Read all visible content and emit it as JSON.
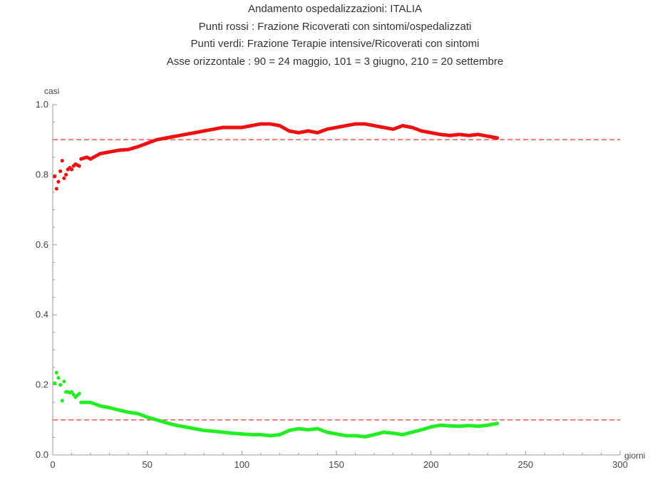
{
  "chart_data": {
    "type": "scatter",
    "title_lines": [
      "Andamento ospedalizzazioni: ITALIA",
      "Punti rossi : Frazione Ricoverati con sintomi/ospedalizzati",
      "Punti verdi: Frazione Terapie intensive/Ricoverati con sintomi",
      "Asse orizzontale : 90 = 24 maggio, 101 = 3 giugno, 210 = 20 settembre"
    ],
    "xlabel": "giorni",
    "ylabel": "casi",
    "xlim": [
      0,
      300
    ],
    "ylim": [
      0.0,
      1.0
    ],
    "x_ticks": [
      0,
      50,
      100,
      150,
      200,
      250,
      300
    ],
    "x_tick_labels": [
      "0",
      "50",
      "100",
      "150",
      "200",
      "250",
      "300"
    ],
    "y_ticks": [
      0.0,
      0.2,
      0.4,
      0.6,
      0.8,
      1.0
    ],
    "y_tick_labels": [
      "0.0",
      "0.2",
      "0.4",
      "0.6",
      "0.8",
      "1.0"
    ],
    "reference_lines": [
      {
        "y": 0.9,
        "color": "#ff4444",
        "style": "dashed"
      },
      {
        "y": 0.1,
        "color": "#ff4444",
        "style": "dashed"
      }
    ],
    "series": [
      {
        "color": "#ee1111",
        "x_start": 1,
        "x_end": 235,
        "control_points": [
          [
            1,
            0.795
          ],
          [
            2,
            0.76
          ],
          [
            3,
            0.78
          ],
          [
            4,
            0.81
          ],
          [
            5,
            0.84
          ],
          [
            6,
            0.79
          ],
          [
            7,
            0.8
          ],
          [
            8,
            0.815
          ],
          [
            9,
            0.82
          ],
          [
            10,
            0.815
          ],
          [
            11,
            0.825
          ],
          [
            12,
            0.83
          ],
          [
            14,
            0.825
          ],
          [
            15,
            0.845
          ],
          [
            18,
            0.85
          ],
          [
            20,
            0.845
          ],
          [
            25,
            0.86
          ],
          [
            30,
            0.865
          ],
          [
            35,
            0.87
          ],
          [
            40,
            0.872
          ],
          [
            45,
            0.88
          ],
          [
            50,
            0.89
          ],
          [
            55,
            0.9
          ],
          [
            60,
            0.905
          ],
          [
            65,
            0.91
          ],
          [
            70,
            0.915
          ],
          [
            75,
            0.92
          ],
          [
            80,
            0.925
          ],
          [
            85,
            0.93
          ],
          [
            90,
            0.935
          ],
          [
            95,
            0.935
          ],
          [
            100,
            0.935
          ],
          [
            105,
            0.94
          ],
          [
            110,
            0.945
          ],
          [
            115,
            0.945
          ],
          [
            120,
            0.94
          ],
          [
            125,
            0.925
          ],
          [
            130,
            0.92
          ],
          [
            135,
            0.925
          ],
          [
            140,
            0.92
          ],
          [
            145,
            0.93
          ],
          [
            150,
            0.935
          ],
          [
            155,
            0.94
          ],
          [
            160,
            0.945
          ],
          [
            165,
            0.945
          ],
          [
            170,
            0.94
          ],
          [
            175,
            0.935
          ],
          [
            180,
            0.93
          ],
          [
            185,
            0.94
          ],
          [
            190,
            0.935
          ],
          [
            195,
            0.925
          ],
          [
            200,
            0.92
          ],
          [
            205,
            0.915
          ],
          [
            210,
            0.912
          ],
          [
            215,
            0.915
          ],
          [
            220,
            0.912
          ],
          [
            225,
            0.915
          ],
          [
            230,
            0.91
          ],
          [
            235,
            0.905
          ]
        ]
      },
      {
        "color": "#22ee22",
        "x_start": 1,
        "x_end": 235,
        "control_points": [
          [
            1,
            0.205
          ],
          [
            2,
            0.235
          ],
          [
            3,
            0.22
          ],
          [
            4,
            0.2
          ],
          [
            5,
            0.155
          ],
          [
            6,
            0.21
          ],
          [
            7,
            0.18
          ],
          [
            8,
            0.18
          ],
          [
            9,
            0.178
          ],
          [
            10,
            0.18
          ],
          [
            12,
            0.165
          ],
          [
            14,
            0.175
          ],
          [
            15,
            0.15
          ],
          [
            20,
            0.15
          ],
          [
            25,
            0.14
          ],
          [
            30,
            0.135
          ],
          [
            35,
            0.128
          ],
          [
            40,
            0.122
          ],
          [
            45,
            0.118
          ],
          [
            50,
            0.108
          ],
          [
            55,
            0.1
          ],
          [
            60,
            0.092
          ],
          [
            65,
            0.085
          ],
          [
            70,
            0.08
          ],
          [
            75,
            0.075
          ],
          [
            80,
            0.07
          ],
          [
            85,
            0.068
          ],
          [
            90,
            0.065
          ],
          [
            95,
            0.062
          ],
          [
            100,
            0.06
          ],
          [
            105,
            0.058
          ],
          [
            110,
            0.058
          ],
          [
            115,
            0.055
          ],
          [
            120,
            0.058
          ],
          [
            125,
            0.07
          ],
          [
            130,
            0.075
          ],
          [
            135,
            0.072
          ],
          [
            140,
            0.075
          ],
          [
            145,
            0.065
          ],
          [
            150,
            0.06
          ],
          [
            155,
            0.055
          ],
          [
            160,
            0.055
          ],
          [
            165,
            0.052
          ],
          [
            170,
            0.058
          ],
          [
            175,
            0.065
          ],
          [
            180,
            0.062
          ],
          [
            185,
            0.058
          ],
          [
            190,
            0.065
          ],
          [
            195,
            0.072
          ],
          [
            200,
            0.08
          ],
          [
            205,
            0.085
          ],
          [
            210,
            0.083
          ],
          [
            215,
            0.082
          ],
          [
            220,
            0.084
          ],
          [
            225,
            0.082
          ],
          [
            230,
            0.085
          ],
          [
            235,
            0.09
          ]
        ]
      }
    ]
  }
}
